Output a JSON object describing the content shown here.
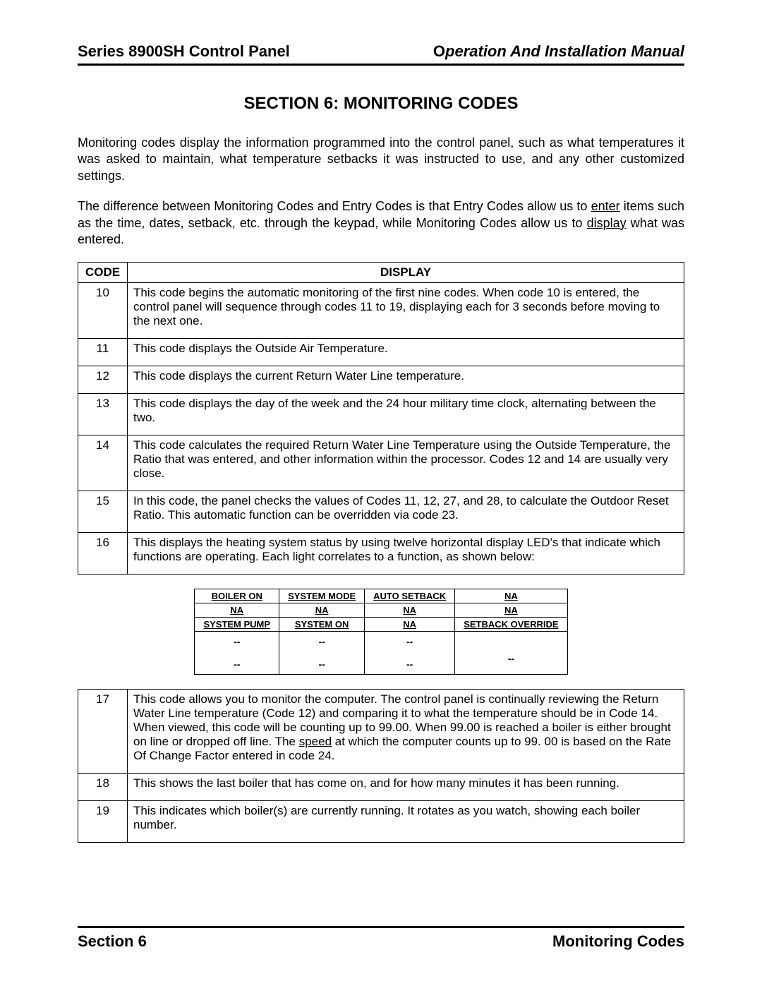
{
  "header": {
    "left": "Series 8900SH Control Panel",
    "right_o": "O",
    "right_rest": "peration And Installation Manual"
  },
  "title": "SECTION 6: MONITORING CODES",
  "para1": "Monitoring codes display the information programmed into the control panel, such as what temperatures it was asked to maintain, what temperature setbacks it was instructed to use, and any other customized settings.",
  "para2_pre": "The difference between Monitoring Codes and Entry Codes is that Entry Codes allow us to ",
  "para2_u1": "enter",
  "para2_mid": " items such as the time, dates, setback, etc. through the keypad, while Monitoring Codes allow us to ",
  "para2_u2": "display",
  "para2_post": " what was entered.",
  "table1": {
    "head_code": "CODE",
    "head_display": "DISPLAY",
    "rows": [
      {
        "code": "10",
        "text": "This code begins the automatic monitoring of the first nine codes. When code 10 is entered, the control panel will sequence through codes 11 to 19, displaying each for 3 seconds before moving to the next one."
      },
      {
        "code": "11",
        "text": "This code displays the Outside Air Temperature."
      },
      {
        "code": "12",
        "text": "This code displays the current Return Water Line temperature."
      },
      {
        "code": "13",
        "text": "This code displays the day of the week and the 24 hour military time clock, alternating between the two."
      },
      {
        "code": "14",
        "text": "This code calculates the required Return Water Line Temperature using the Outside Temperature, the Ratio that was entered, and other information within the processor. Codes 12 and 14 are usually very close."
      },
      {
        "code": "15",
        "text": "In this code, the panel checks the values of Codes 11, 12, 27, and 28, to calculate the Outdoor Reset Ratio. This automatic function can be overridden via code 23."
      },
      {
        "code": "16",
        "text": "This displays the heating system status by using twelve horizontal display LED's that indicate which functions are operating.  Each light correlates to a function, as shown below:"
      }
    ]
  },
  "led": {
    "r1": [
      "BOILER ON",
      "SYSTEM MODE",
      "AUTO SETBACK",
      "NA"
    ],
    "r2": [
      "NA",
      "NA",
      "NA",
      "NA"
    ],
    "r3": [
      "SYSTEM PUMP",
      "SYSTEM ON",
      "NA",
      "SETBACK OVERRIDE"
    ],
    "d1": [
      "--",
      "--",
      "--",
      ""
    ],
    "d2": [
      "--",
      "--",
      "--",
      "--"
    ]
  },
  "table2": {
    "rows": [
      {
        "code": "17",
        "pre": "This code allows you to monitor the computer. The control panel is continually reviewing the Return Water Line temperature (Code 12) and comparing it to what the temperature should be in Code 14. When viewed, this code will be counting up to 99.00.  When  99.00 is reached a boiler is either brought on line or dropped off line. The ",
        "u": "speed",
        "post": " at which the computer counts up to 99. 00 is based on the Rate Of Change Factor entered in code 24."
      },
      {
        "code": "18",
        "text": "This shows the last boiler that has come on, and for how many minutes it has been running."
      },
      {
        "code": "19",
        "text": "This indicates which boiler(s) are currently running. It rotates as you watch, showing each boiler number."
      }
    ]
  },
  "footer": {
    "left": "Section 6",
    "right": "Monitoring Codes"
  }
}
